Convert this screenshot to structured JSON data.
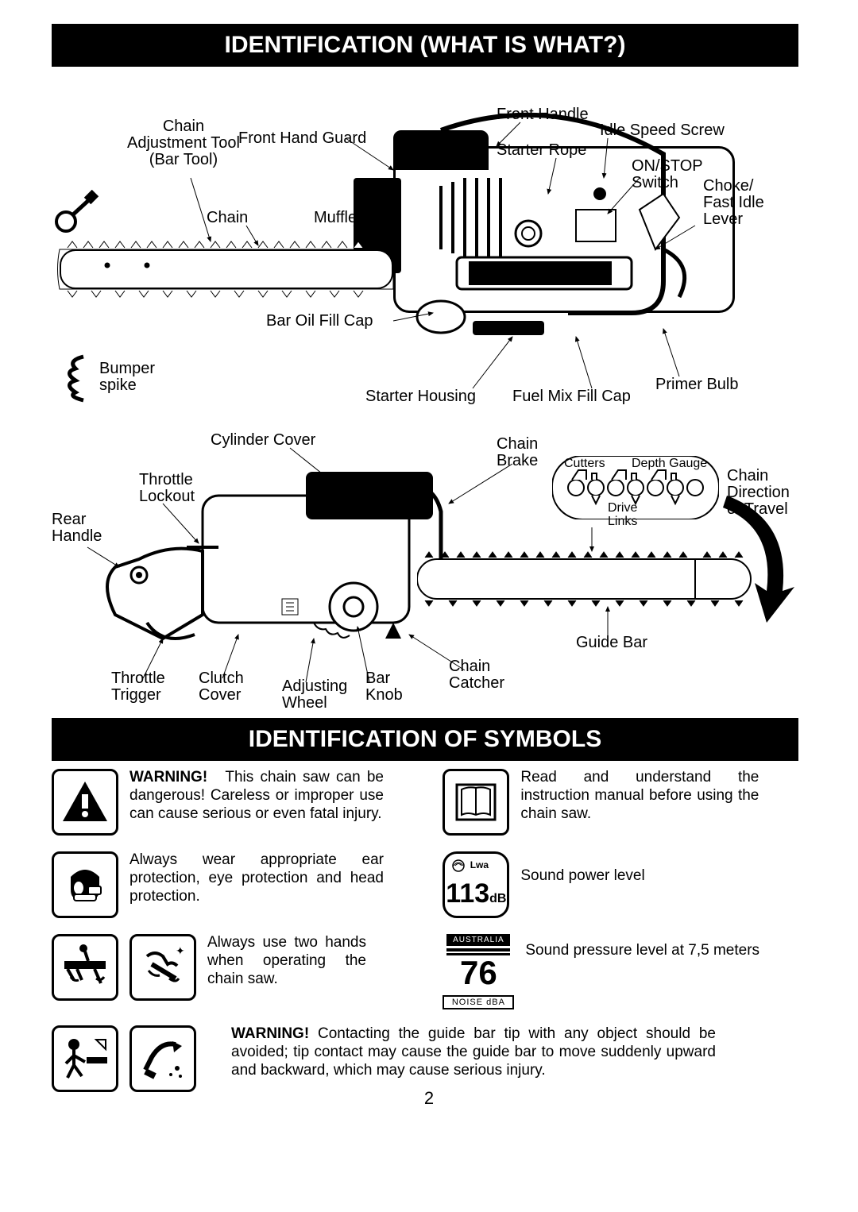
{
  "header1": "IDENTIFICATION  (WHAT IS WHAT?)",
  "header2": "IDENTIFICATION OF SYMBOLS",
  "pageNumber": "2",
  "top_diagram_labels": {
    "chain_adj_tool": "Chain\nAdjustment Tool\n(Bar Tool)",
    "front_hand_guard": "Front Hand Guard",
    "front_handle": "Front Handle",
    "idle_speed_screw": "Idle Speed Screw",
    "starter_rope": "Starter Rope",
    "on_stop_switch": "ON/STOP\nSwitch",
    "choke_lever": "Choke/\nFast Idle\nLever",
    "chain": "Chain",
    "muffler": "Muffler",
    "bar_oil_cap": "Bar Oil Fill Cap",
    "bumper_spike": "Bumper\nspike",
    "starter_housing": "Starter Housing",
    "fuel_mix_cap": "Fuel Mix Fill Cap",
    "primer_bulb": "Primer Bulb"
  },
  "bottom_diagram_labels": {
    "cylinder_cover": "Cylinder Cover",
    "chain_brake": "Chain\nBrake",
    "throttle_lockout": "Throttle\nLockout",
    "rear_handle": "Rear\nHandle",
    "chain_direction": "Chain\nDirection\nof Travel",
    "cutters": "Cutters",
    "depth_gauge": "Depth Gauge",
    "drive_links": "Drive\nLinks",
    "guide_bar": "Guide Bar",
    "throttle_trigger": "Throttle\nTrigger",
    "clutch_cover": "Clutch\nCover",
    "adjusting_wheel": "Adjusting\nWheel",
    "bar_knob": "Bar\nKnob",
    "chain_catcher": "Chain\nCatcher"
  },
  "symbols": {
    "warning_main": {
      "lead": "WARNING!",
      "body": "This chain saw can be dangerous! Careless or improper use can cause serious or even fatal injury."
    },
    "manual": "Read and understand the instruction manual before using the chain saw.",
    "protection": "Always wear appropriate ear protection, eye protection and head protection.",
    "sound_power": "Sound power level",
    "sound_power_value": "113",
    "sound_power_unit": "dB",
    "sound_power_lwa": "Lwa",
    "two_hands": "Always use two hands when operating the chain saw.",
    "sound_pressure": "Sound pressure level at 7,5 meters",
    "noise_badge_top": "AUSTRALIA",
    "noise_badge_value": "76",
    "noise_badge_bottom": "NOISE dBA",
    "warning_tip": {
      "lead": "WARNING!",
      "body": "Contacting the guide bar tip with any object should be avoided; tip contact may cause the guide bar to move suddenly upward and backward, which may cause serious injury."
    }
  }
}
